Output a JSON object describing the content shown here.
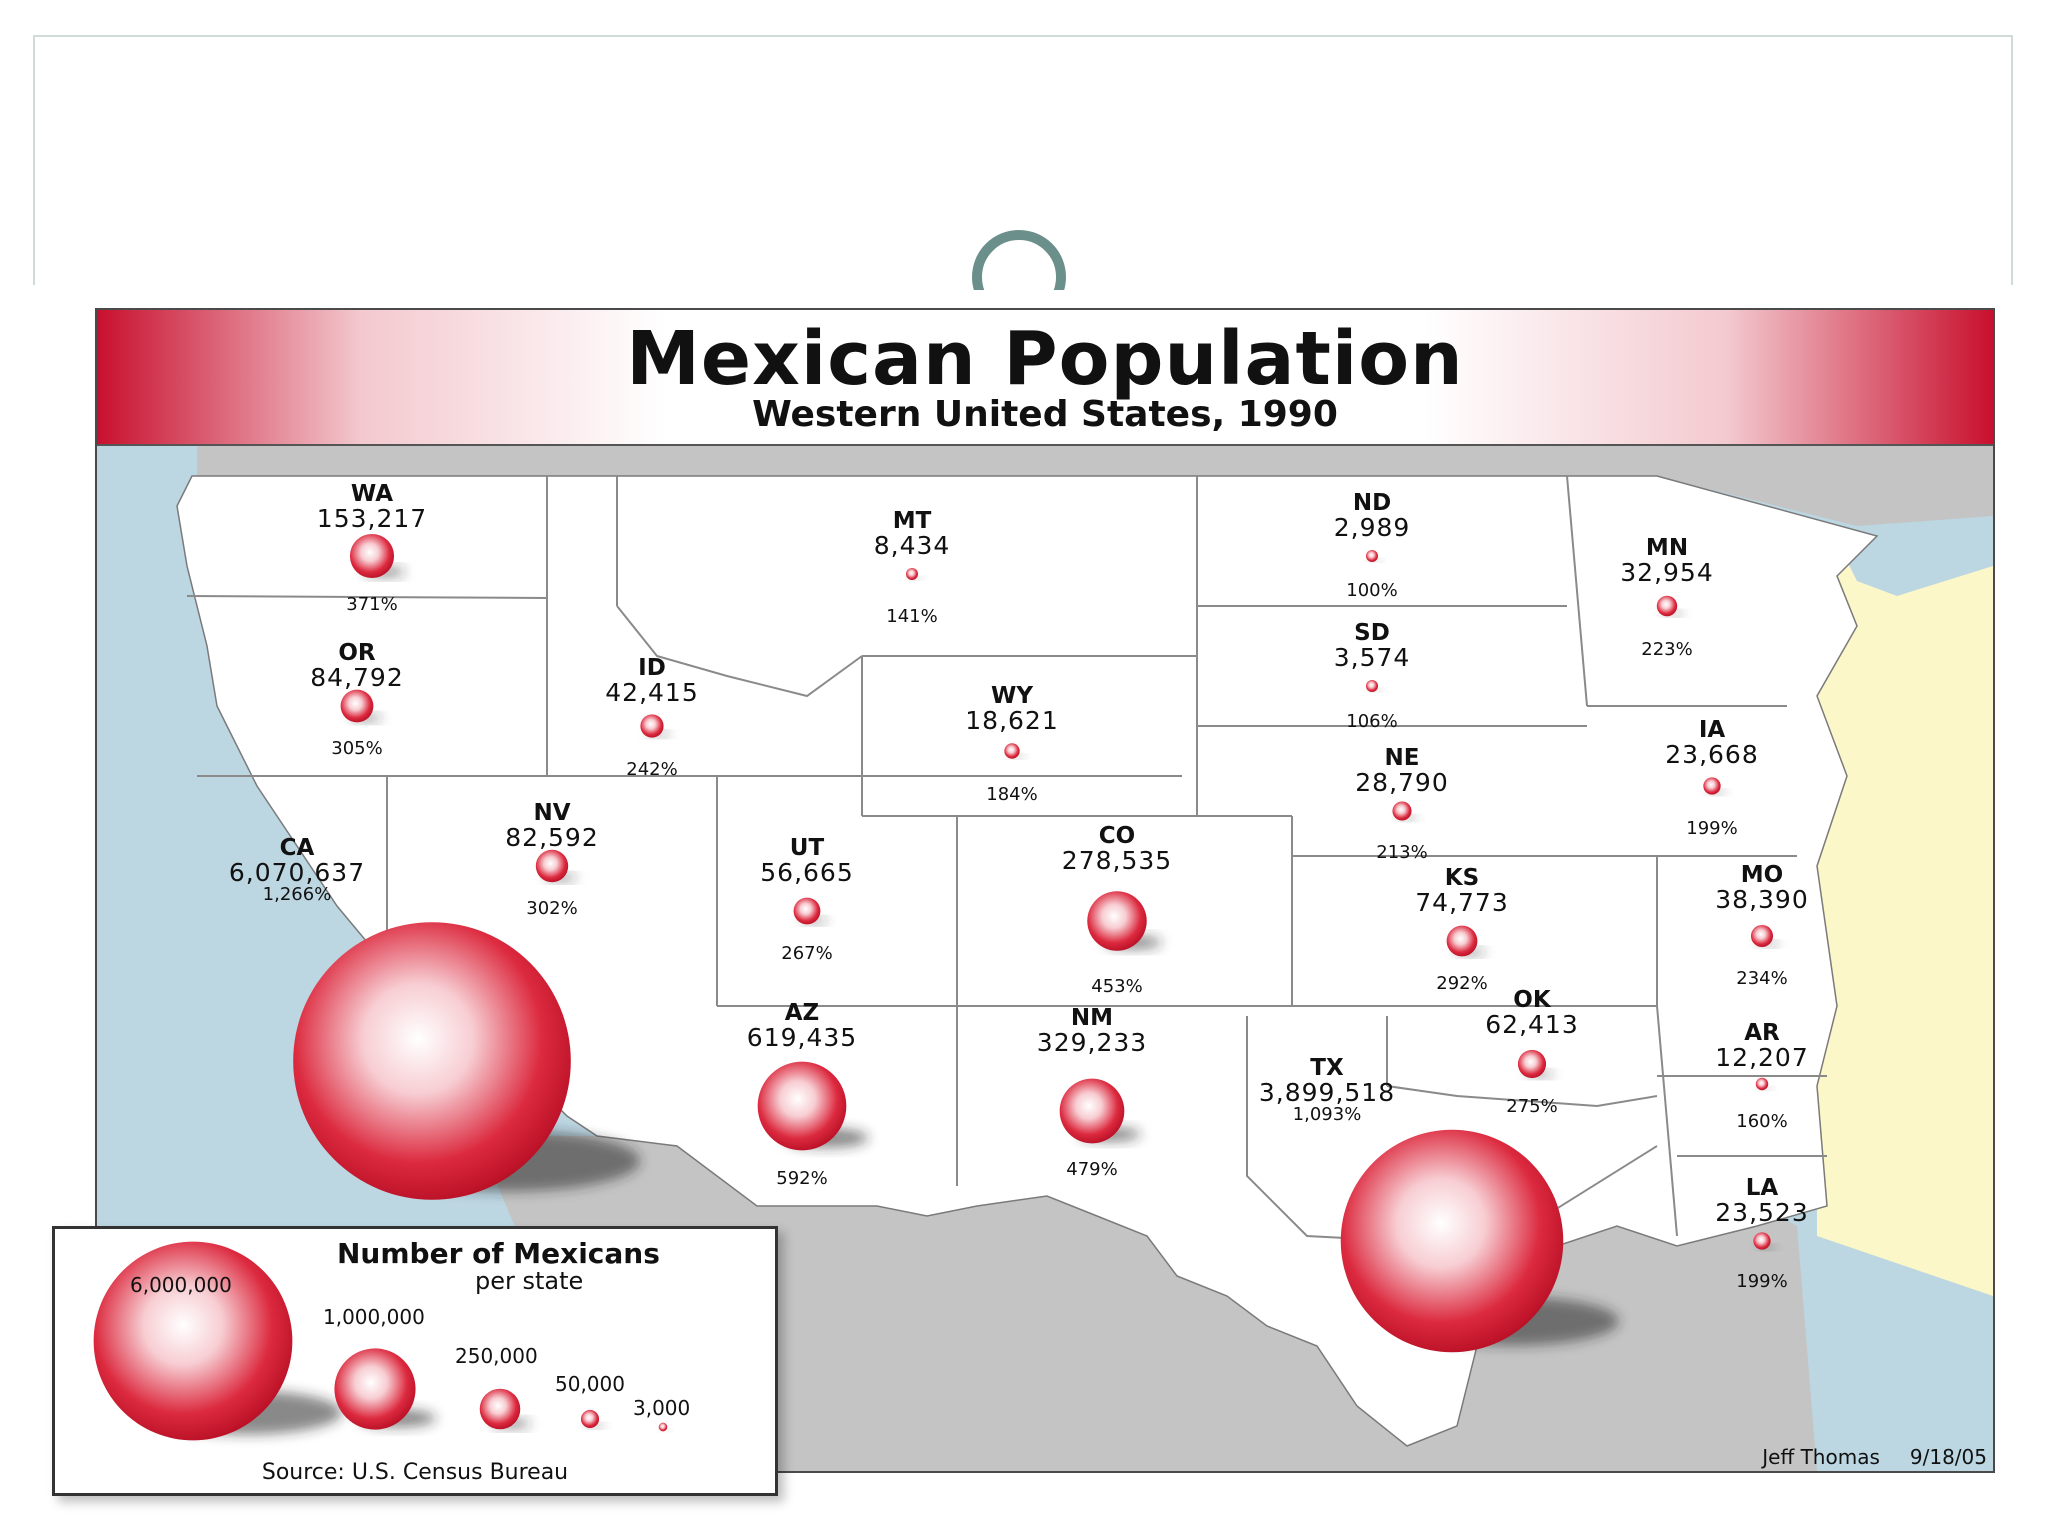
{
  "map": {
    "title": "Mexican Population",
    "subtitle": "Western United States, 1990",
    "credit_author": "Jeff Thomas",
    "credit_date": "9/18/05"
  },
  "legend": {
    "title": "Number of Mexicans",
    "subtitle": "per state",
    "source": "Source: U.S. Census Bureau",
    "levels": [
      {
        "label": "6,000,000",
        "value": 6000000
      },
      {
        "label": "1,000,000",
        "value": 1000000
      },
      {
        "label": "250,000",
        "value": 250000
      },
      {
        "label": "50,000",
        "value": 50000
      },
      {
        "label": "3,000",
        "value": 3000
      }
    ]
  },
  "states": [
    {
      "abbr": "WA",
      "count": "153,217",
      "pct": "371%",
      "value": 153217
    },
    {
      "abbr": "OR",
      "count": "84,792",
      "pct": "305%",
      "value": 84792
    },
    {
      "abbr": "CA",
      "count": "6,070,637",
      "pct": "1,266%",
      "value": 6070637
    },
    {
      "abbr": "NV",
      "count": "82,592",
      "pct": "302%",
      "value": 82592
    },
    {
      "abbr": "ID",
      "count": "42,415",
      "pct": "242%",
      "value": 42415
    },
    {
      "abbr": "MT",
      "count": "8,434",
      "pct": "141%",
      "value": 8434
    },
    {
      "abbr": "WY",
      "count": "18,621",
      "pct": "184%",
      "value": 18621
    },
    {
      "abbr": "UT",
      "count": "56,665",
      "pct": "267%",
      "value": 56665
    },
    {
      "abbr": "CO",
      "count": "278,535",
      "pct": "453%",
      "value": 278535
    },
    {
      "abbr": "AZ",
      "count": "619,435",
      "pct": "592%",
      "value": 619435
    },
    {
      "abbr": "NM",
      "count": "329,233",
      "pct": "479%",
      "value": 329233
    },
    {
      "abbr": "ND",
      "count": "2,989",
      "pct": "100%",
      "value": 2989
    },
    {
      "abbr": "SD",
      "count": "3,574",
      "pct": "106%",
      "value": 3574
    },
    {
      "abbr": "NE",
      "count": "28,790",
      "pct": "213%",
      "value": 28790
    },
    {
      "abbr": "KS",
      "count": "74,773",
      "pct": "292%",
      "value": 74773
    },
    {
      "abbr": "OK",
      "count": "62,413",
      "pct": "275%",
      "value": 62413
    },
    {
      "abbr": "TX",
      "count": "3,899,518",
      "pct": "1,093%",
      "value": 3899518
    },
    {
      "abbr": "MN",
      "count": "32,954",
      "pct": "223%",
      "value": 32954
    },
    {
      "abbr": "IA",
      "count": "23,668",
      "pct": "199%",
      "value": 23668
    },
    {
      "abbr": "MO",
      "count": "38,390",
      "pct": "234%",
      "value": 38390
    },
    {
      "abbr": "AR",
      "count": "12,207",
      "pct": "160%",
      "value": 12207
    },
    {
      "abbr": "LA",
      "count": "23,523",
      "pct": "199%",
      "value": 23523
    }
  ],
  "colors": {
    "bubble": "#d0102a",
    "water": "#bcd6e2",
    "land_gray": "#c4c4c4",
    "east_land": "#fbf7c8",
    "banner_red": "#c8102e"
  }
}
